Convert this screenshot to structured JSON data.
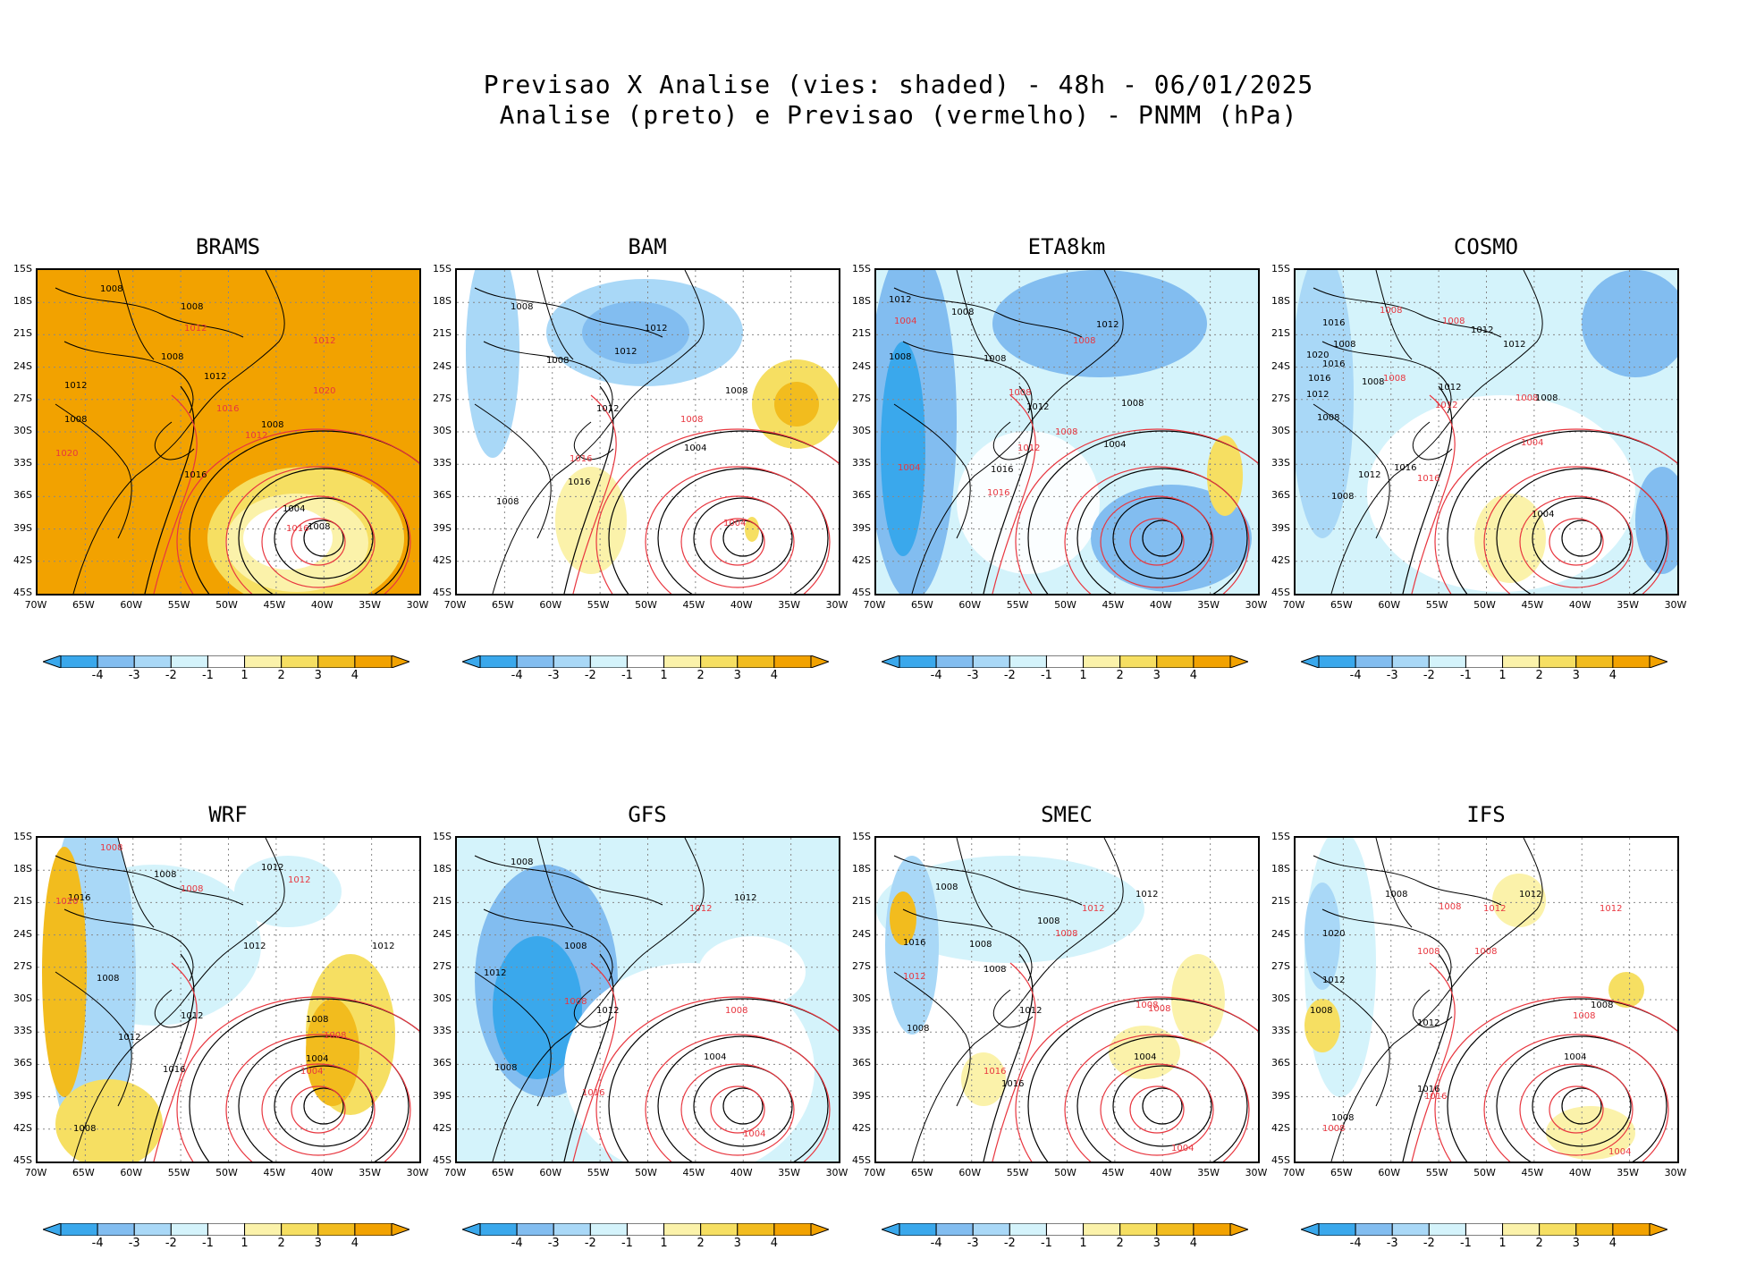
{
  "title_line1": "Previsao X Analise (vies: shaded) - 48h - 06/01/2025",
  "title_line2": "Analise (preto) e Previsao (vermelho) - PNMM (hPa)",
  "lat_labels": [
    "15S",
    "18S",
    "21S",
    "24S",
    "27S",
    "30S",
    "33S",
    "36S",
    "39S",
    "42S",
    "45S"
  ],
  "lon_labels": [
    "70W",
    "65W",
    "60W",
    "55W",
    "50W",
    "45W",
    "40W",
    "35W",
    "30W"
  ],
  "colorbar": {
    "labels": [
      "-4",
      "-3",
      "-2",
      "-1",
      "1",
      "2",
      "3",
      "4"
    ],
    "colors": [
      "#3aa8ec",
      "#82bdf0",
      "#a9d8f7",
      "#d4f3fb",
      "#ffffff",
      "#fbf2aa",
      "#f6df62",
      "#f2bc1e",
      "#f2a200"
    ]
  },
  "panels": [
    {
      "name": "BRAMS",
      "bias": "warm",
      "labels": [
        {
          "t": "1008",
          "c": "k",
          "x": 70,
          "y": 14
        },
        {
          "t": "1008",
          "c": "k",
          "x": 160,
          "y": 34
        },
        {
          "t": "1012",
          "c": "r",
          "x": 164,
          "y": 58
        },
        {
          "t": "1008",
          "c": "k",
          "x": 138,
          "y": 90
        },
        {
          "t": "1012",
          "c": "k",
          "x": 186,
          "y": 112
        },
        {
          "t": "1012",
          "c": "k",
          "x": 30,
          "y": 122
        },
        {
          "t": "1008",
          "c": "k",
          "x": 30,
          "y": 160
        },
        {
          "t": "1016",
          "c": "r",
          "x": 200,
          "y": 148
        },
        {
          "t": "1008",
          "c": "k",
          "x": 250,
          "y": 166
        },
        {
          "t": "1012",
          "c": "r",
          "x": 232,
          "y": 178
        },
        {
          "t": "1012",
          "c": "r",
          "x": 308,
          "y": 72
        },
        {
          "t": "1020",
          "c": "r",
          "x": 308,
          "y": 128
        },
        {
          "t": "1020",
          "c": "r",
          "x": 20,
          "y": 198
        },
        {
          "t": "1016",
          "c": "k",
          "x": 164,
          "y": 222
        },
        {
          "t": "1004",
          "c": "k",
          "x": 274,
          "y": 260
        },
        {
          "t": "1016",
          "c": "r",
          "x": 278,
          "y": 282
        },
        {
          "t": "1008",
          "c": "k",
          "x": 302,
          "y": 280
        }
      ]
    },
    {
      "name": "BAM",
      "bias": "mixed",
      "labels": [
        {
          "t": "1008",
          "c": "k",
          "x": 60,
          "y": 34
        },
        {
          "t": "1008",
          "c": "k",
          "x": 100,
          "y": 94
        },
        {
          "t": "1012",
          "c": "k",
          "x": 176,
          "y": 84
        },
        {
          "t": "1012",
          "c": "k",
          "x": 210,
          "y": 58
        },
        {
          "t": "1008",
          "c": "k",
          "x": 300,
          "y": 128
        },
        {
          "t": "1008",
          "c": "r",
          "x": 250,
          "y": 160
        },
        {
          "t": "1012",
          "c": "k",
          "x": 156,
          "y": 148
        },
        {
          "t": "1004",
          "c": "k",
          "x": 254,
          "y": 192
        },
        {
          "t": "1016",
          "c": "r",
          "x": 126,
          "y": 204
        },
        {
          "t": "1016",
          "c": "k",
          "x": 124,
          "y": 230
        },
        {
          "t": "1008",
          "c": "k",
          "x": 44,
          "y": 252
        },
        {
          "t": "1004",
          "c": "r",
          "x": 298,
          "y": 276
        }
      ]
    },
    {
      "name": "ETA8km",
      "bias": "cool",
      "labels": [
        {
          "t": "1012",
          "c": "k",
          "x": 14,
          "y": 26
        },
        {
          "t": "1008",
          "c": "k",
          "x": 84,
          "y": 40
        },
        {
          "t": "1004",
          "c": "r",
          "x": 20,
          "y": 50
        },
        {
          "t": "1008",
          "c": "k",
          "x": 14,
          "y": 90
        },
        {
          "t": "1008",
          "c": "k",
          "x": 120,
          "y": 92
        },
        {
          "t": "1012",
          "c": "k",
          "x": 246,
          "y": 54
        },
        {
          "t": "1008",
          "c": "r",
          "x": 220,
          "y": 72
        },
        {
          "t": "1008",
          "c": "r",
          "x": 148,
          "y": 130
        },
        {
          "t": "1012",
          "c": "k",
          "x": 168,
          "y": 146
        },
        {
          "t": "1008",
          "c": "k",
          "x": 274,
          "y": 142
        },
        {
          "t": "1008",
          "c": "r",
          "x": 200,
          "y": 174
        },
        {
          "t": "1012",
          "c": "r",
          "x": 158,
          "y": 192
        },
        {
          "t": "1004",
          "c": "r",
          "x": 24,
          "y": 214
        },
        {
          "t": "1004",
          "c": "k",
          "x": 254,
          "y": 188
        },
        {
          "t": "1016",
          "c": "k",
          "x": 128,
          "y": 216
        },
        {
          "t": "1016",
          "c": "r",
          "x": 124,
          "y": 242
        }
      ]
    },
    {
      "name": "COSMO",
      "bias": "mixed2",
      "labels": [
        {
          "t": "1016",
          "c": "k",
          "x": 30,
          "y": 52
        },
        {
          "t": "1008",
          "c": "r",
          "x": 94,
          "y": 38
        },
        {
          "t": "1008",
          "c": "r",
          "x": 164,
          "y": 50
        },
        {
          "t": "1012",
          "c": "k",
          "x": 196,
          "y": 60
        },
        {
          "t": "1012",
          "c": "k",
          "x": 232,
          "y": 76
        },
        {
          "t": "1008",
          "c": "k",
          "x": 42,
          "y": 76
        },
        {
          "t": "1020",
          "c": "k",
          "x": 12,
          "y": 88
        },
        {
          "t": "1016",
          "c": "k",
          "x": 30,
          "y": 98
        },
        {
          "t": "1016",
          "c": "k",
          "x": 14,
          "y": 114
        },
        {
          "t": "1012",
          "c": "k",
          "x": 12,
          "y": 132
        },
        {
          "t": "1008",
          "c": "k",
          "x": 74,
          "y": 118
        },
        {
          "t": "1008",
          "c": "r",
          "x": 98,
          "y": 114
        },
        {
          "t": "1012",
          "c": "k",
          "x": 160,
          "y": 124
        },
        {
          "t": "1008",
          "c": "r",
          "x": 246,
          "y": 136
        },
        {
          "t": "1008",
          "c": "k",
          "x": 268,
          "y": 136
        },
        {
          "t": "1012",
          "c": "r",
          "x": 156,
          "y": 144
        },
        {
          "t": "1008",
          "c": "k",
          "x": 24,
          "y": 158
        },
        {
          "t": "1004",
          "c": "r",
          "x": 252,
          "y": 186
        },
        {
          "t": "1016",
          "c": "k",
          "x": 110,
          "y": 214
        },
        {
          "t": "1016",
          "c": "r",
          "x": 136,
          "y": 226
        },
        {
          "t": "1012",
          "c": "k",
          "x": 70,
          "y": 222
        },
        {
          "t": "1008",
          "c": "k",
          "x": 40,
          "y": 246
        },
        {
          "t": "1004",
          "c": "k",
          "x": 264,
          "y": 266
        }
      ]
    },
    {
      "name": "WRF",
      "bias": "mixed3",
      "labels": [
        {
          "t": "1008",
          "c": "r",
          "x": 70,
          "y": 4
        },
        {
          "t": "1008",
          "c": "k",
          "x": 130,
          "y": 34
        },
        {
          "t": "1012",
          "c": "k",
          "x": 250,
          "y": 26
        },
        {
          "t": "1012",
          "c": "r",
          "x": 280,
          "y": 40
        },
        {
          "t": "1008",
          "c": "r",
          "x": 160,
          "y": 50
        },
        {
          "t": "1016",
          "c": "k",
          "x": 34,
          "y": 60
        },
        {
          "t": "1020",
          "c": "r",
          "x": 20,
          "y": 64
        },
        {
          "t": "1012",
          "c": "k",
          "x": 230,
          "y": 114
        },
        {
          "t": "1012",
          "c": "k",
          "x": 374,
          "y": 114
        },
        {
          "t": "1008",
          "c": "k",
          "x": 66,
          "y": 150
        },
        {
          "t": "1012",
          "c": "k",
          "x": 160,
          "y": 192
        },
        {
          "t": "1008",
          "c": "k",
          "x": 300,
          "y": 196
        },
        {
          "t": "1008",
          "c": "r",
          "x": 320,
          "y": 214
        },
        {
          "t": "1012",
          "c": "k",
          "x": 90,
          "y": 216
        },
        {
          "t": "1004",
          "c": "k",
          "x": 300,
          "y": 240
        },
        {
          "t": "1004",
          "c": "r",
          "x": 294,
          "y": 254
        },
        {
          "t": "1016",
          "c": "k",
          "x": 140,
          "y": 252
        },
        {
          "t": "1008",
          "c": "k",
          "x": 40,
          "y": 318
        }
      ]
    },
    {
      "name": "GFS",
      "bias": "cool2",
      "labels": [
        {
          "t": "1008",
          "c": "k",
          "x": 60,
          "y": 20
        },
        {
          "t": "1012",
          "c": "k",
          "x": 310,
          "y": 60
        },
        {
          "t": "1012",
          "c": "r",
          "x": 260,
          "y": 72
        },
        {
          "t": "1008",
          "c": "k",
          "x": 120,
          "y": 114
        },
        {
          "t": "1012",
          "c": "k",
          "x": 30,
          "y": 144
        },
        {
          "t": "1008",
          "c": "r",
          "x": 120,
          "y": 176
        },
        {
          "t": "1012",
          "c": "k",
          "x": 156,
          "y": 186
        },
        {
          "t": "1008",
          "c": "r",
          "x": 300,
          "y": 186
        },
        {
          "t": "1004",
          "c": "k",
          "x": 276,
          "y": 238
        },
        {
          "t": "1008",
          "c": "k",
          "x": 42,
          "y": 250
        },
        {
          "t": "1016",
          "c": "r",
          "x": 140,
          "y": 278
        },
        {
          "t": "1004",
          "c": "r",
          "x": 320,
          "y": 324
        }
      ]
    },
    {
      "name": "SMEC",
      "bias": "mixed4",
      "labels": [
        {
          "t": "1008",
          "c": "k",
          "x": 66,
          "y": 48
        },
        {
          "t": "1012",
          "c": "k",
          "x": 290,
          "y": 56
        },
        {
          "t": "1008",
          "c": "k",
          "x": 180,
          "y": 86
        },
        {
          "t": "1012",
          "c": "r",
          "x": 230,
          "y": 72
        },
        {
          "t": "1008",
          "c": "r",
          "x": 200,
          "y": 100
        },
        {
          "t": "1008",
          "c": "k",
          "x": 104,
          "y": 112
        },
        {
          "t": "1016",
          "c": "k",
          "x": 30,
          "y": 110
        },
        {
          "t": "1008",
          "c": "k",
          "x": 120,
          "y": 140
        },
        {
          "t": "1012",
          "c": "r",
          "x": 30,
          "y": 148
        },
        {
          "t": "1012",
          "c": "k",
          "x": 160,
          "y": 186
        },
        {
          "t": "1008",
          "c": "r",
          "x": 290,
          "y": 180
        },
        {
          "t": "1008",
          "c": "r",
          "x": 304,
          "y": 184
        },
        {
          "t": "1008",
          "c": "k",
          "x": 34,
          "y": 206
        },
        {
          "t": "1004",
          "c": "k",
          "x": 288,
          "y": 238
        },
        {
          "t": "1016",
          "c": "r",
          "x": 120,
          "y": 254
        },
        {
          "t": "1016",
          "c": "k",
          "x": 140,
          "y": 268
        },
        {
          "t": "1004",
          "c": "r",
          "x": 330,
          "y": 340
        }
      ]
    },
    {
      "name": "IFS",
      "bias": "neutral",
      "labels": [
        {
          "t": "1008",
          "c": "k",
          "x": 100,
          "y": 56
        },
        {
          "t": "1008",
          "c": "r",
          "x": 160,
          "y": 70
        },
        {
          "t": "1012",
          "c": "r",
          "x": 210,
          "y": 72
        },
        {
          "t": "1012",
          "c": "k",
          "x": 250,
          "y": 56
        },
        {
          "t": "1012",
          "c": "r",
          "x": 340,
          "y": 72
        },
        {
          "t": "1020",
          "c": "k",
          "x": 30,
          "y": 100
        },
        {
          "t": "1008",
          "c": "r",
          "x": 136,
          "y": 120
        },
        {
          "t": "1008",
          "c": "r",
          "x": 200,
          "y": 120
        },
        {
          "t": "1012",
          "c": "k",
          "x": 30,
          "y": 152
        },
        {
          "t": "1008",
          "c": "k",
          "x": 16,
          "y": 186
        },
        {
          "t": "1008",
          "c": "r",
          "x": 310,
          "y": 192
        },
        {
          "t": "1008",
          "c": "k",
          "x": 330,
          "y": 180
        },
        {
          "t": "1012",
          "c": "k",
          "x": 136,
          "y": 200
        },
        {
          "t": "1004",
          "c": "k",
          "x": 300,
          "y": 238
        },
        {
          "t": "1016",
          "c": "k",
          "x": 136,
          "y": 274
        },
        {
          "t": "1016",
          "c": "r",
          "x": 144,
          "y": 282
        },
        {
          "t": "1008",
          "c": "k",
          "x": 40,
          "y": 306
        },
        {
          "t": "1008",
          "c": "r",
          "x": 30,
          "y": 318
        },
        {
          "t": "1004",
          "c": "r",
          "x": 350,
          "y": 344
        }
      ]
    }
  ]
}
